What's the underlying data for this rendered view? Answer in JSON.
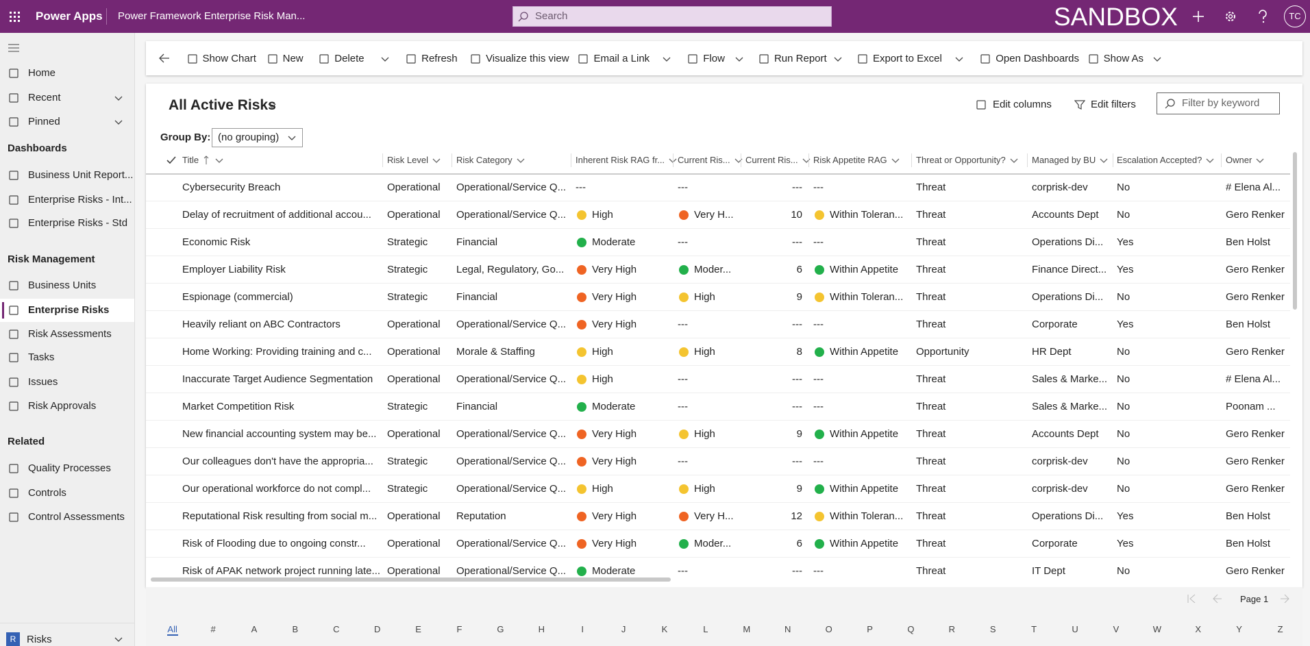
{
  "header": {
    "app": "Power Apps",
    "title": "Power Framework Enterprise Risk Man...",
    "search": "Search",
    "env": "SANDBOX",
    "avatar": "TC"
  },
  "toolbar": [
    "Show Chart",
    "New",
    "Delete",
    "Refresh",
    "Visualize this view",
    "Email a Link",
    "Flow",
    "Run Report",
    "Export to Excel",
    "Open Dashboards",
    "Show As"
  ],
  "nav": {
    "top": [
      "Home",
      "Recent",
      "Pinned"
    ],
    "sections": [
      {
        "title": "Dashboards",
        "items": [
          "Business Unit Report...",
          "Enterprise Risks - Int...",
          "Enterprise Risks - Std"
        ]
      },
      {
        "title": "Risk Management",
        "items": [
          "Business Units",
          "Enterprise Risks",
          "Risk Assessments",
          "Tasks",
          "Issues",
          "Risk Approvals"
        ]
      },
      {
        "title": "Related",
        "items": [
          "Quality Processes",
          "Controls",
          "Control Assessments"
        ]
      }
    ],
    "area": {
      "badge": "R",
      "label": "Risks"
    }
  },
  "view": {
    "title": "All Active Risks",
    "edit_columns": "Edit columns",
    "edit_filters": "Edit filters",
    "filter": "Filter by keyword",
    "group_by_label": "Group By:",
    "group_by": "(no grouping)"
  },
  "table": {
    "columns": [
      "Title",
      "Risk Level",
      "Risk Category",
      "Inherent Risk RAG fr...",
      "Current Ris...",
      "Current Ris...",
      "Risk Appetite RAG",
      "Threat or Opportunity?",
      "Managed by BU",
      "Escalation Accepted?",
      "Owner"
    ],
    "rows": [
      [
        "Cybersecurity Breach",
        "Operational",
        "Operational/Service Q...",
        "---",
        "---",
        "---",
        "---",
        "Threat",
        "corprisk-dev",
        "No",
        "# Elena Al..."
      ],
      [
        "Delay of recruitment of additional accou...",
        "Operational",
        "Operational/Service Q...",
        {
          "text": "High",
          "color": "#f4c430"
        },
        {
          "text": "Very H...",
          "color": "#ef6423"
        },
        10,
        {
          "text": "Within Toleran...",
          "color": "#f4c430"
        },
        "Threat",
        "Accounts Dept",
        "No",
        "Gero Renker"
      ],
      [
        "Economic Risk",
        "Strategic",
        "Financial",
        {
          "text": "Moderate",
          "color": "#22b04b"
        },
        "---",
        "---",
        "---",
        "Threat",
        "Operations Di...",
        "Yes",
        "Ben Holst"
      ],
      [
        "Employer Liability Risk",
        "Strategic",
        "Legal, Regulatory, Go...",
        {
          "text": "Very High",
          "color": "#ef6423"
        },
        {
          "text": "Moder...",
          "color": "#22b04b"
        },
        6,
        {
          "text": "Within Appetite",
          "color": "#22b04b"
        },
        "Threat",
        "Finance Direct...",
        "Yes",
        "Gero Renker"
      ],
      [
        "Espionage (commercial)",
        "Strategic",
        "Financial",
        {
          "text": "Very High",
          "color": "#ef6423"
        },
        {
          "text": "High",
          "color": "#f4c430"
        },
        9,
        {
          "text": "Within Toleran...",
          "color": "#f4c430"
        },
        "Threat",
        "Operations Di...",
        "No",
        "Gero Renker"
      ],
      [
        "Heavily reliant on ABC Contractors",
        "Operational",
        "Operational/Service Q...",
        {
          "text": "Very High",
          "color": "#ef6423"
        },
        "---",
        "---",
        "---",
        "Threat",
        "Corporate",
        "Yes",
        "Ben Holst"
      ],
      [
        "Home Working: Providing training and c...",
        "Operational",
        "Morale & Staffing",
        {
          "text": "High",
          "color": "#f4c430"
        },
        {
          "text": "High",
          "color": "#f4c430"
        },
        8,
        {
          "text": "Within Appetite",
          "color": "#22b04b"
        },
        "Opportunity",
        "HR Dept",
        "No",
        "Gero Renker"
      ],
      [
        "Inaccurate Target Audience Segmentation",
        "Operational",
        "Operational/Service Q...",
        {
          "text": "High",
          "color": "#f4c430"
        },
        "---",
        "---",
        "---",
        "Threat",
        "Sales & Marke...",
        "No",
        "# Elena Al..."
      ],
      [
        "Market Competition Risk",
        "Strategic",
        "Financial",
        {
          "text": "Moderate",
          "color": "#22b04b"
        },
        "---",
        "---",
        "---",
        "Threat",
        "Sales & Marke...",
        "No",
        "Poonam ..."
      ],
      [
        "New financial accounting system may be...",
        "Operational",
        "Operational/Service Q...",
        {
          "text": "Very High",
          "color": "#ef6423"
        },
        {
          "text": "High",
          "color": "#f4c430"
        },
        9,
        {
          "text": "Within Appetite",
          "color": "#22b04b"
        },
        "Threat",
        "Accounts Dept",
        "No",
        "Gero Renker"
      ],
      [
        "Our colleagues don't have the appropria...",
        "Strategic",
        "Operational/Service Q...",
        {
          "text": "Very High",
          "color": "#ef6423"
        },
        "---",
        "---",
        "---",
        "Threat",
        "corprisk-dev",
        "No",
        "Gero Renker"
      ],
      [
        "Our operational workforce do not compl...",
        "Strategic",
        "Operational/Service Q...",
        {
          "text": "High",
          "color": "#f4c430"
        },
        {
          "text": "High",
          "color": "#f4c430"
        },
        9,
        {
          "text": "Within Appetite",
          "color": "#22b04b"
        },
        "Threat",
        "corprisk-dev",
        "No",
        "Gero Renker"
      ],
      [
        "Reputational Risk resulting from social m...",
        "Operational",
        "Reputation",
        {
          "text": "Very High",
          "color": "#ef6423"
        },
        {
          "text": "Very H...",
          "color": "#ef6423"
        },
        12,
        {
          "text": "Within Toleran...",
          "color": "#f4c430"
        },
        "Threat",
        "Operations Di...",
        "Yes",
        "Ben Holst"
      ],
      [
        "Risk of  Flooding due to ongoing constr...",
        "Operational",
        "Operational/Service Q...",
        {
          "text": "Very High",
          "color": "#ef6423"
        },
        {
          "text": "Moder...",
          "color": "#22b04b"
        },
        6,
        {
          "text": "Within Appetite",
          "color": "#22b04b"
        },
        "Threat",
        "Corporate",
        "Yes",
        "Ben Holst"
      ],
      [
        "Risk of APAK network project running late...",
        "Operational",
        "Operational/Service Q...",
        {
          "text": "Moderate",
          "color": "#22b04b"
        },
        "---",
        "---",
        "---",
        "Threat",
        "IT Dept",
        "No",
        "Gero Renker"
      ]
    ]
  },
  "footer": {
    "page": "Page 1",
    "letters": [
      "All",
      "#",
      "A",
      "B",
      "C",
      "D",
      "E",
      "F",
      "G",
      "H",
      "I",
      "J",
      "K",
      "L",
      "M",
      "N",
      "O",
      "P",
      "Q",
      "R",
      "S",
      "T",
      "U",
      "V",
      "W",
      "X",
      "Y",
      "Z"
    ]
  }
}
